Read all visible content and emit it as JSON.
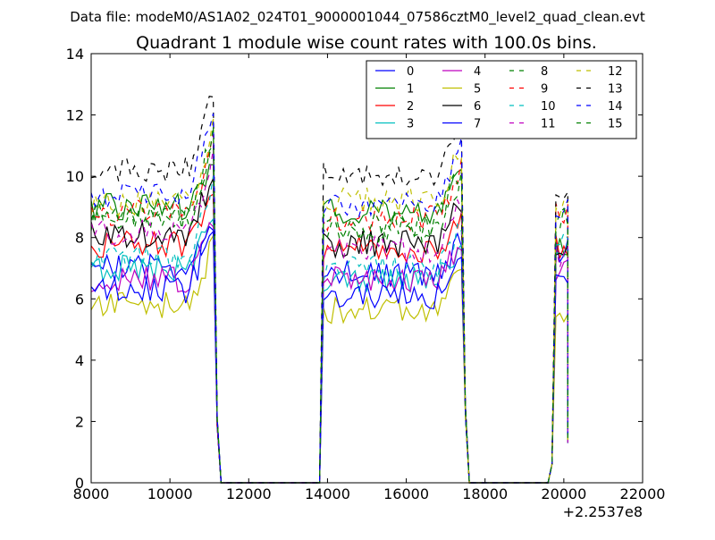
{
  "chart_data": {
    "type": "line",
    "suptitle": "Data file: modeM0/AS1A02_024T01_9000001044_07586cztM0_level2_quad_clean.evt",
    "title": "Quadrant 1 module wise count rates with 100.0s bins.",
    "xlabel": "",
    "ylabel": "",
    "xlim": [
      8000,
      22000
    ],
    "ylim": [
      0,
      14
    ],
    "x_offset_label": "+2.2537e8",
    "x_ticks": [
      8000,
      10000,
      12000,
      14000,
      16000,
      18000,
      20000,
      22000
    ],
    "x_tick_labels": [
      "8000",
      "10000",
      "12000",
      "14000",
      "16000",
      "18000",
      "20000",
      "22000"
    ],
    "y_ticks": [
      0,
      2,
      4,
      6,
      8,
      10,
      12,
      14
    ],
    "y_tick_labels": [
      "0",
      "2",
      "4",
      "6",
      "8",
      "10",
      "12",
      "14"
    ],
    "grid": false,
    "legend_position": "top-right",
    "legend_columns": 4,
    "segments": [
      {
        "start": 8000,
        "end": 11100,
        "drop_end": 11300
      },
      {
        "start": 13900,
        "end": 17400,
        "drop_end": 17600
      },
      {
        "start": 19800,
        "end": 20100
      }
    ],
    "series": [
      {
        "name": "0",
        "color": "#0000ff",
        "dash": "solid",
        "levels": [
          7.0,
          6.8,
          7.6
        ]
      },
      {
        "name": "1",
        "color": "#008000",
        "dash": "solid",
        "levels": [
          9.0,
          8.8,
          7.6
        ]
      },
      {
        "name": "2",
        "color": "#ff0000",
        "dash": "solid",
        "levels": [
          7.8,
          7.6,
          7.7
        ]
      },
      {
        "name": "3",
        "color": "#00bfbf",
        "dash": "solid",
        "levels": [
          7.0,
          6.6,
          7.6
        ]
      },
      {
        "name": "4",
        "color": "#bf00bf",
        "dash": "solid",
        "levels": [
          6.6,
          6.6,
          7.0
        ]
      },
      {
        "name": "5",
        "color": "#bfbf00",
        "dash": "solid",
        "levels": [
          5.8,
          5.6,
          5.6
        ]
      },
      {
        "name": "6",
        "color": "#000000",
        "dash": "solid",
        "levels": [
          8.1,
          7.8,
          7.7
        ]
      },
      {
        "name": "7",
        "color": "#0000ff",
        "dash": "solid",
        "levels": [
          6.3,
          6.1,
          6.9
        ]
      },
      {
        "name": "8",
        "color": "#008000",
        "dash": "dashed",
        "levels": [
          8.6,
          8.3,
          8.7
        ]
      },
      {
        "name": "9",
        "color": "#ff0000",
        "dash": "dashed",
        "levels": [
          8.8,
          8.6,
          8.8
        ]
      },
      {
        "name": "10",
        "color": "#00bfbf",
        "dash": "dashed",
        "levels": [
          7.3,
          7.0,
          7.8
        ]
      },
      {
        "name": "11",
        "color": "#bf00bf",
        "dash": "dashed",
        "levels": [
          8.2,
          7.6,
          7.4
        ]
      },
      {
        "name": "12",
        "color": "#bfbf00",
        "dash": "dashed",
        "levels": [
          9.1,
          9.2,
          9.1
        ]
      },
      {
        "name": "13",
        "color": "#000000",
        "dash": "dashed",
        "levels": [
          10.2,
          10.0,
          9.6
        ]
      },
      {
        "name": "14",
        "color": "#0000ff",
        "dash": "dashed",
        "levels": [
          9.4,
          9.1,
          9.0
        ]
      },
      {
        "name": "15",
        "color": "#008000",
        "dash": "dashed",
        "levels": [
          8.7,
          8.4,
          8.6
        ]
      }
    ]
  }
}
